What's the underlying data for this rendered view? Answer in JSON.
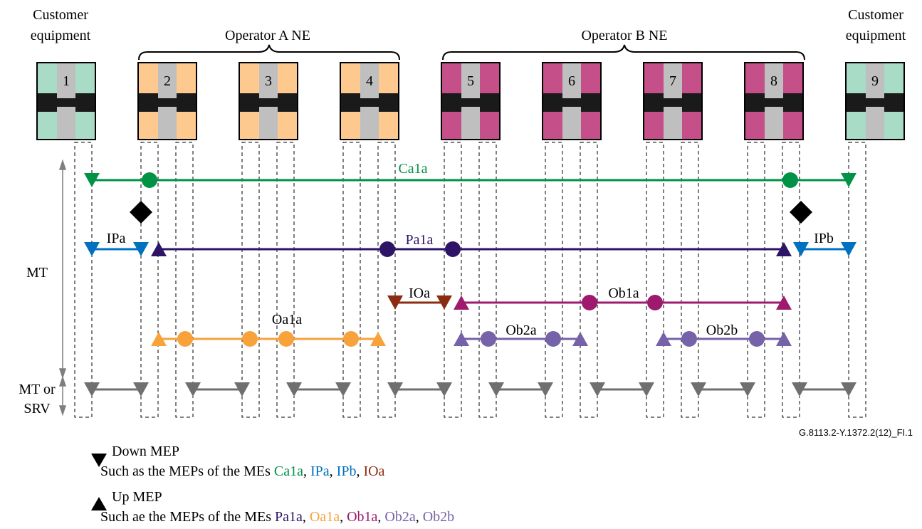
{
  "labels": {
    "customer_left": [
      "Customer",
      "equipment"
    ],
    "customer_right": [
      "Customer",
      "equipment"
    ],
    "operator_a": "Operator A NE",
    "operator_b": "Operator B NE",
    "mt": "MT",
    "mt_or": "MT or",
    "srv": "SRV",
    "figure_id": "G.8113.2-Y.1372.2(12)_FI.1"
  },
  "nodes": [
    "1",
    "2",
    "3",
    "4",
    "5",
    "6",
    "7",
    "8",
    "9"
  ],
  "me_labels": {
    "ca1a": "Ca1a",
    "ipa": "IPa",
    "ipb": "IPb",
    "pa1a": "Pa1a",
    "ioa": "IOa",
    "ob1a": "Ob1a",
    "oa1a": "Oa1a",
    "ob2a": "Ob2a",
    "ob2b": "Ob2b"
  },
  "legend": {
    "down_title": "Down MEP",
    "down_prefix": "Such as the MEPs of the MEs ",
    "down_items": [
      "Ca1a",
      "IPa",
      "IPb",
      "IOa"
    ],
    "up_title": "Up MEP",
    "up_prefix": "Such ae the MEPs of the MEs ",
    "up_items": [
      "Pa1a",
      "Oa1a",
      "Ob1a",
      "Ob2a",
      "Ob2b"
    ],
    "separator": ", "
  },
  "colors": {
    "customer_fill": "#a8dcc6",
    "operator_a_fill": "#fdc98f",
    "operator_b_fill": "#c54f88",
    "core_gray": "#bfbfbf",
    "ca1a": "#009245",
    "ip": "#0070c0",
    "pa1a": "#2e1466",
    "ioa": "#8b2c10",
    "ob1a": "#9e1a6e",
    "oa1a": "#f7a23a",
    "ob2": "#7662a8",
    "srv": "#6f6f6f"
  }
}
